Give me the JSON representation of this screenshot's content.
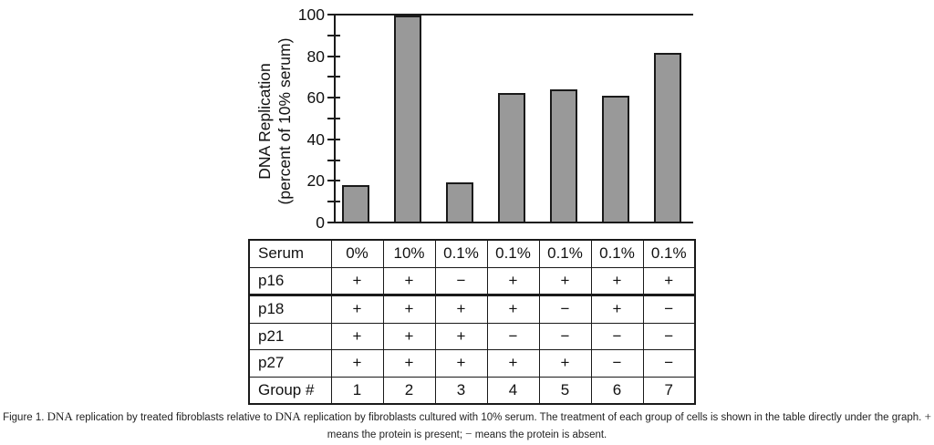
{
  "chart_data": {
    "type": "bar",
    "title": "",
    "ylabel_line1": "DNA Replication",
    "ylabel_line2": "(percent of 10% serum)",
    "ylim": [
      0,
      100
    ],
    "ytick_major": [
      0,
      20,
      40,
      60,
      80,
      100
    ],
    "ytick_minor": [
      10,
      30,
      50,
      70,
      90
    ],
    "categories": [
      "1",
      "2",
      "3",
      "4",
      "5",
      "6",
      "7"
    ],
    "values": [
      17.5,
      100,
      19,
      62.5,
      64,
      61,
      82
    ],
    "xlabel": "",
    "legend": null,
    "grid": false,
    "bar_color": "#999999",
    "bar_border_color": "#1a1a1a"
  },
  "table": {
    "rows": [
      {
        "label": "Serum",
        "values": [
          "0%",
          "10%",
          "0.1%",
          "0.1%",
          "0.1%",
          "0.1%",
          "0.1%"
        ]
      },
      {
        "label": "p16",
        "values": [
          "+",
          "+",
          "−",
          "+",
          "+",
          "+",
          "+"
        ]
      },
      {
        "label": "p18",
        "values": [
          "+",
          "+",
          "+",
          "+",
          "−",
          "+",
          "−"
        ]
      },
      {
        "label": "p21",
        "values": [
          "+",
          "+",
          "+",
          "−",
          "−",
          "−",
          "−"
        ]
      },
      {
        "label": "p27",
        "values": [
          "+",
          "+",
          "+",
          "+",
          "+",
          "−",
          "−"
        ]
      },
      {
        "label": "Group #",
        "values": [
          "1",
          "2",
          "3",
          "4",
          "5",
          "6",
          "7"
        ]
      }
    ]
  },
  "caption": {
    "line1_segments": [
      {
        "t": "Figure 1. ",
        "serif": false
      },
      {
        "t": "DNA",
        "serif": true
      },
      {
        "t": " replication by treated fibroblasts relative to ",
        "serif": false
      },
      {
        "t": "DNA",
        "serif": true
      },
      {
        "t": " replication by fibroblasts cultured with 10% serum. The treatment of each group of cells is shown in the table directly under the graph. ",
        "serif": false
      },
      {
        "t": "+",
        "serif": true
      }
    ],
    "line2_segments": [
      {
        "t": "means the protein is present; ",
        "serif": false
      },
      {
        "t": "−",
        "serif": true
      },
      {
        "t": " means the protein is absent.",
        "serif": false
      }
    ]
  }
}
